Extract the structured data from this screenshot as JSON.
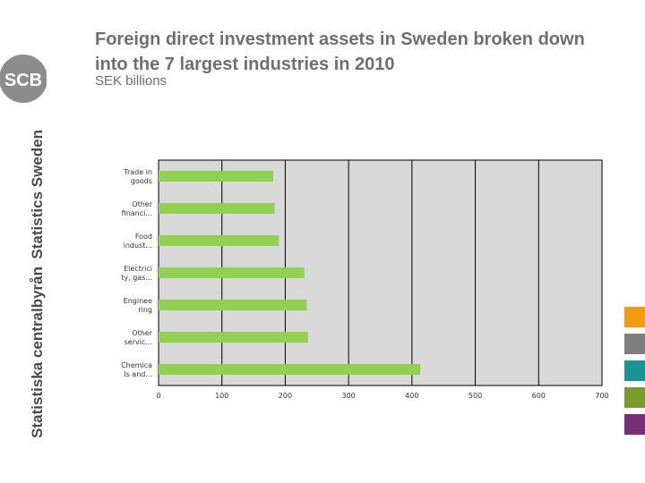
{
  "title": "Foreign direct investment assets in Sweden broken down into the 7 largest industries in 2010",
  "subtitle": "SEK billions",
  "logo_text": "SCB",
  "brand_text_en": "Statistics Sweden",
  "brand_text_sv": "Statistiska centralbyrån",
  "colors": {
    "bar": "#92d050",
    "plot_bg": "#d9d9d9",
    "grid": "#000000",
    "text": "#6f6f6f",
    "logo": "#8c8c8c"
  },
  "swatches": [
    "#f39c12",
    "#7f7f7f",
    "#1a9499",
    "#7a9a2e",
    "#7a2e7a"
  ],
  "chart_data": {
    "type": "bar",
    "orientation": "horizontal",
    "categories": [
      "Trade in goods",
      "Other financi...",
      "Food indust...",
      "Electrici ty, gas...",
      "Enginee ring",
      "Other servic...",
      "Chemica ls and..."
    ],
    "category_lines": [
      [
        "Trade in",
        "goods"
      ],
      [
        "Other",
        "financi..."
      ],
      [
        "Food",
        "indust..."
      ],
      [
        "Electrici",
        "ty, gas..."
      ],
      [
        "Enginee",
        "ring"
      ],
      [
        "Other",
        "servic..."
      ],
      [
        "Chemica",
        "ls and..."
      ]
    ],
    "values": [
      181,
      183,
      190,
      230,
      234,
      236,
      413
    ],
    "xlim": [
      0,
      700
    ],
    "xticks": [
      0,
      100,
      200,
      300,
      400,
      500,
      600,
      700
    ],
    "grid": true,
    "legend": "none",
    "title": "Foreign direct investment assets in Sweden broken down into the 7 largest industries in 2010",
    "xlabel": "",
    "ylabel": ""
  }
}
